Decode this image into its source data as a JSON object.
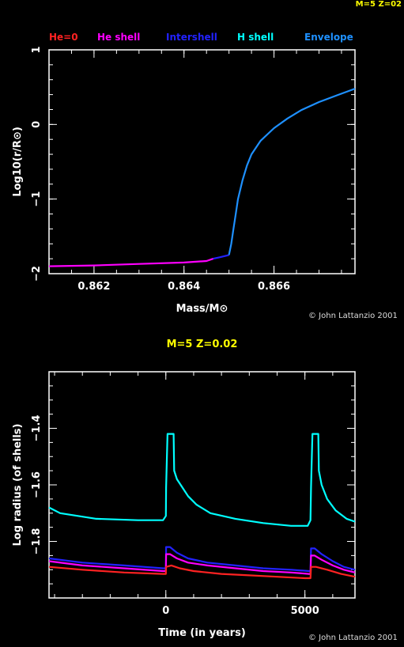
{
  "corner_label": "M=5 Z=02",
  "bottom_title": "M=5 Z=0.02",
  "copyright_top": "© John Lattanzio 2001",
  "copyright_bottom": "© John Lattanzio 2001",
  "colors": {
    "he0": "#ff2222",
    "he_shell": "#ff00ff",
    "intershell": "#2222ff",
    "h_shell": "#00ffff",
    "envelope": "#1e90ff"
  },
  "chart_data": [
    {
      "type": "line",
      "legend": [
        {
          "name": "He=0",
          "color": "#ff2222"
        },
        {
          "name": "He shell",
          "color": "#ff00ff"
        },
        {
          "name": "Intershell",
          "color": "#2222ff"
        },
        {
          "name": "H shell",
          "color": "#00ffff"
        },
        {
          "name": "Envelope",
          "color": "#1e90ff"
        }
      ],
      "xlabel": "Mass/M⊙",
      "ylabel": "Log10(r/R⊙)",
      "xlim": [
        0.861,
        0.8678
      ],
      "ylim": [
        -2.0,
        1.0
      ],
      "xticks": [
        0.862,
        0.864,
        0.866
      ],
      "xtick_labels": [
        "0.862",
        "0.864",
        "0.866"
      ],
      "yticks": [
        -2,
        -1,
        0,
        1
      ],
      "ytick_labels": [
        "−2",
        "−1",
        "0",
        "1"
      ],
      "series": [
        {
          "name": "He shell",
          "color": "#ff00ff",
          "x": [
            0.861,
            0.862,
            0.863,
            0.864,
            0.8645,
            0.86465
          ],
          "y": [
            -1.9,
            -1.89,
            -1.87,
            -1.85,
            -1.83,
            -1.8
          ]
        },
        {
          "name": "Intershell",
          "color": "#2222ff",
          "x": [
            0.86465,
            0.8648,
            0.865
          ],
          "y": [
            -1.8,
            -1.78,
            -1.75
          ]
        },
        {
          "name": "Envelope",
          "color": "#1e90ff",
          "x": [
            0.865,
            0.86505,
            0.8651,
            0.86515,
            0.8652,
            0.8653,
            0.8654,
            0.8655,
            0.8657,
            0.866,
            0.8663,
            0.8666,
            0.867,
            0.8674,
            0.8678
          ],
          "y": [
            -1.75,
            -1.6,
            -1.4,
            -1.2,
            -1.0,
            -0.75,
            -0.55,
            -0.4,
            -0.22,
            -0.05,
            0.08,
            0.19,
            0.3,
            0.39,
            0.48
          ]
        }
      ]
    },
    {
      "type": "line",
      "xlabel": "Time (in years)",
      "ylabel": "Log radius (of shells)",
      "xlim": [
        -4200,
        6800
      ],
      "ylim": [
        -2.0,
        -1.2
      ],
      "xticks": [
        0,
        5000
      ],
      "xtick_labels": [
        "0",
        "5000"
      ],
      "yticks": [
        -1.4,
        -1.6,
        -1.8
      ],
      "ytick_labels": [
        "−1.4",
        "−1.6",
        "−1.8"
      ],
      "series": [
        {
          "name": "H shell",
          "color": "#00ffff",
          "x": [
            -4200,
            -3800,
            -2500,
            -1000,
            -100,
            0,
            10,
            50,
            60,
            280,
            300,
            400,
            600,
            800,
            1100,
            1600,
            2500,
            3500,
            4500,
            5100,
            5200,
            5220,
            5260,
            5270,
            5480,
            5500,
            5600,
            5800,
            6100,
            6500,
            6800
          ],
          "y": [
            -1.68,
            -1.7,
            -1.72,
            -1.725,
            -1.725,
            -1.71,
            -1.61,
            -1.46,
            -1.42,
            -1.42,
            -1.55,
            -1.58,
            -1.61,
            -1.64,
            -1.67,
            -1.7,
            -1.72,
            -1.735,
            -1.745,
            -1.745,
            -1.725,
            -1.61,
            -1.46,
            -1.42,
            -1.42,
            -1.55,
            -1.6,
            -1.65,
            -1.69,
            -1.72,
            -1.73
          ]
        },
        {
          "name": "Intershell",
          "color": "#2222ff",
          "x": [
            -4200,
            -3000,
            -1500,
            -100,
            0,
            10,
            150,
            400,
            800,
            1500,
            2500,
            3500,
            4500,
            5150,
            5200,
            5220,
            5350,
            5600,
            6000,
            6400,
            6800
          ],
          "y": [
            -1.86,
            -1.875,
            -1.885,
            -1.895,
            -1.895,
            -1.82,
            -1.82,
            -1.84,
            -1.86,
            -1.875,
            -1.885,
            -1.895,
            -1.9,
            -1.905,
            -1.905,
            -1.825,
            -1.825,
            -1.845,
            -1.87,
            -1.89,
            -1.9
          ]
        },
        {
          "name": "He shell",
          "color": "#ff00ff",
          "x": [
            -4200,
            -3000,
            -1500,
            -100,
            0,
            10,
            150,
            400,
            800,
            1500,
            2500,
            3500,
            4500,
            5150,
            5200,
            5220,
            5350,
            5600,
            6000,
            6400,
            6800
          ],
          "y": [
            -1.87,
            -1.885,
            -1.895,
            -1.905,
            -1.905,
            -1.845,
            -1.845,
            -1.86,
            -1.875,
            -1.885,
            -1.895,
            -1.905,
            -1.91,
            -1.915,
            -1.915,
            -1.85,
            -1.85,
            -1.865,
            -1.885,
            -1.9,
            -1.91
          ]
        },
        {
          "name": "He=0",
          "color": "#ff2222",
          "x": [
            -4200,
            -3000,
            -1500,
            -100,
            0,
            10,
            200,
            500,
            1000,
            2000,
            3000,
            4000,
            5000,
            5200,
            5220,
            5400,
            5800,
            6300,
            6800
          ],
          "y": [
            -1.89,
            -1.9,
            -1.91,
            -1.915,
            -1.915,
            -1.89,
            -1.885,
            -1.895,
            -1.905,
            -1.915,
            -1.92,
            -1.925,
            -1.93,
            -1.93,
            -1.89,
            -1.89,
            -1.9,
            -1.915,
            -1.925
          ]
        }
      ]
    }
  ]
}
